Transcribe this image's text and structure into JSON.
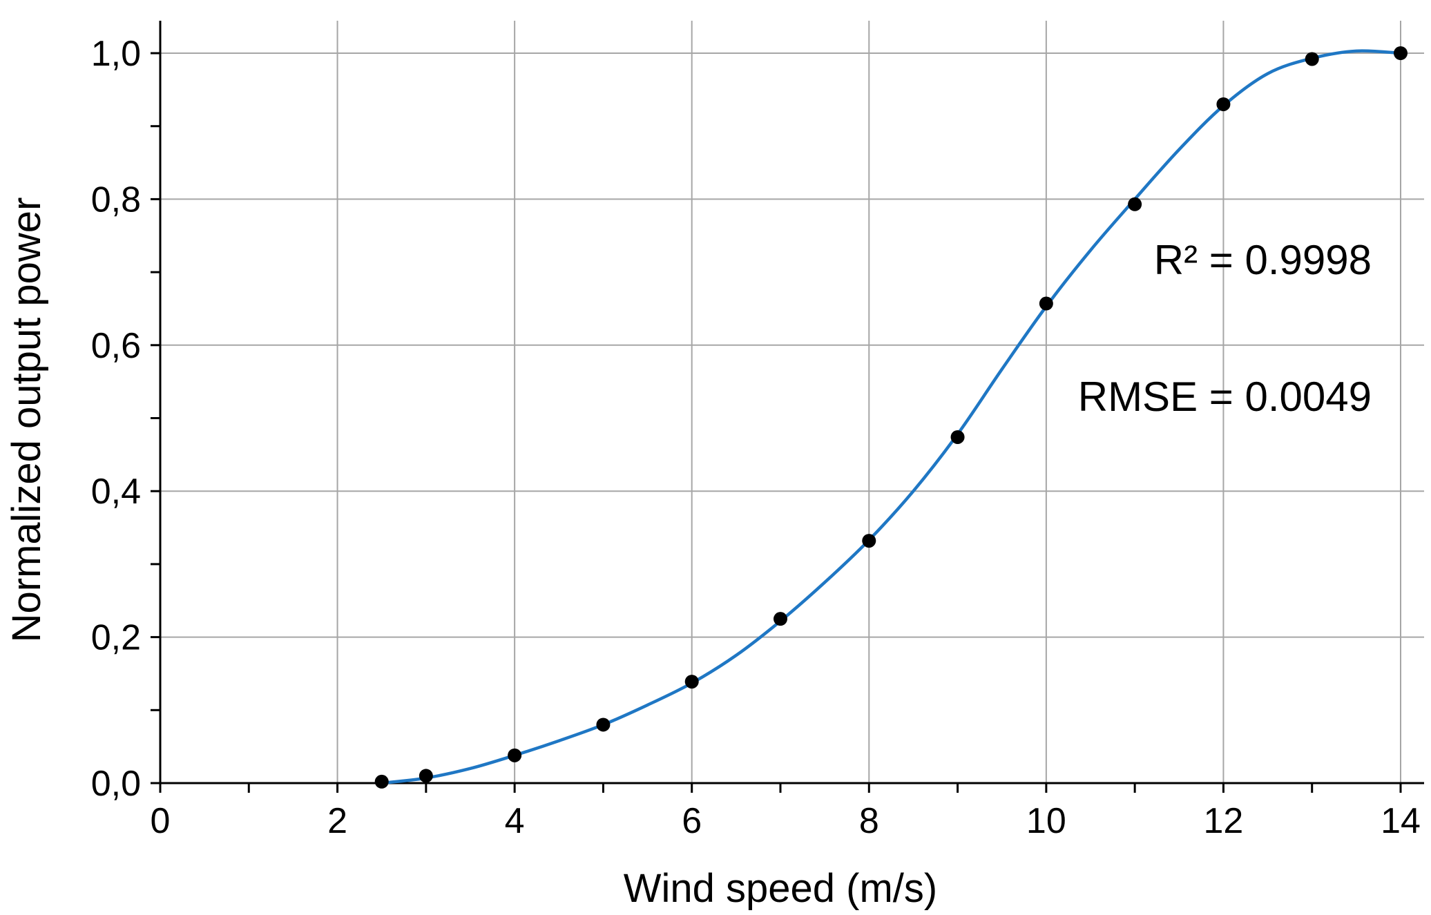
{
  "chart_data": {
    "type": "scatter",
    "title": "",
    "xlabel": "Wind speed (m/s)",
    "ylabel": "Normalized output power",
    "xlim": [
      0,
      14.3
    ],
    "ylim": [
      0,
      1.04
    ],
    "x_ticks": [
      0,
      2,
      4,
      6,
      8,
      10,
      12,
      14
    ],
    "x_tick_labels": [
      "0",
      "2",
      "4",
      "6",
      "8",
      "10",
      "12",
      "14"
    ],
    "y_ticks": [
      0,
      0.2,
      0.4,
      0.6,
      0.8,
      1.0
    ],
    "y_tick_labels": [
      "0,0",
      "0,2",
      "0,4",
      "0,6",
      "0,8",
      "1,0"
    ],
    "grid": true,
    "series": [
      {
        "kind": "scatter",
        "color": "#000000",
        "x": [
          2.5,
          3,
          4,
          5,
          6,
          7,
          8,
          9,
          10,
          11,
          12,
          13,
          14
        ],
        "y": [
          0.002,
          0.01,
          0.038,
          0.08,
          0.139,
          0.225,
          0.332,
          0.474,
          0.657,
          0.793,
          0.93,
          0.992,
          1.0
        ]
      },
      {
        "kind": "line",
        "color": "#1f77c4",
        "x": [
          2.5,
          3,
          3.5,
          4,
          4.5,
          5,
          5.5,
          6,
          6.5,
          7,
          7.5,
          8,
          8.5,
          9,
          9.5,
          10,
          10.5,
          11,
          11.5,
          12,
          12.5,
          13,
          13.5,
          14
        ],
        "y": [
          0.0,
          0.007,
          0.02,
          0.038,
          0.058,
          0.08,
          0.107,
          0.137,
          0.175,
          0.222,
          0.275,
          0.333,
          0.4,
          0.478,
          0.567,
          0.653,
          0.73,
          0.8,
          0.868,
          0.928,
          0.972,
          0.993,
          1.003,
          1.0
        ]
      }
    ],
    "annotations": [
      {
        "text": "R² = 0.9998",
        "x": 14,
        "y": 0.86
      },
      {
        "text": "RMSE = 0.0049",
        "x": 14,
        "y": 0.67
      }
    ]
  }
}
